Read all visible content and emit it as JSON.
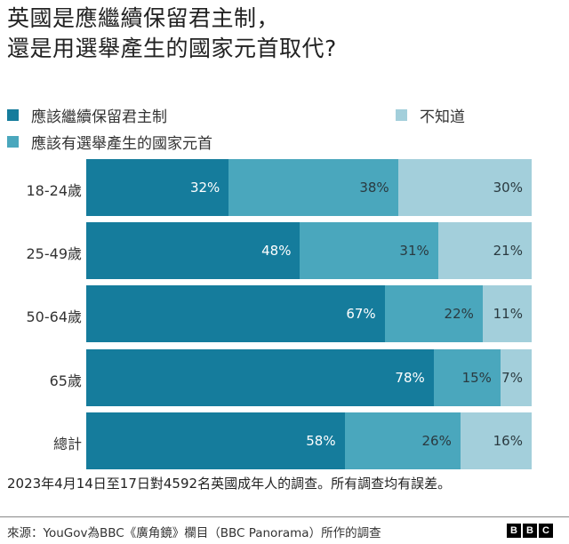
{
  "title": {
    "line1": "英國是應繼續保留君主制，",
    "line2": "還是用選舉產生的國家元首取代?"
  },
  "legend": [
    {
      "label": "應該繼續保留君主制",
      "color": "#157c9c"
    },
    {
      "label": "應該有選舉產生的國家元首",
      "color": "#4aa7bd"
    },
    {
      "label": "不知道",
      "color": "#a3cfdb"
    }
  ],
  "rows": [
    {
      "label": "18-24歲",
      "values": [
        "32%",
        "38%",
        "30%"
      ]
    },
    {
      "label": "25-49歲",
      "values": [
        "48%",
        "31%",
        "21%"
      ]
    },
    {
      "label": "50-64歲",
      "values": [
        "67%",
        "22%",
        "11%"
      ]
    },
    {
      "label": "65歲",
      "values": [
        "78%",
        "15%",
        "7%"
      ]
    },
    {
      "label": "總計",
      "values": [
        "58%",
        "26%",
        "16%"
      ]
    }
  ],
  "note": "2023年4月14日至17日對4592名英國成年人的調查。所有調查均有誤差。",
  "footer": {
    "source": "來源：YouGov為BBC《廣角鏡》欄目（BBC Panorama）所作的調查",
    "logo": [
      "B",
      "B",
      "C"
    ]
  },
  "chart_data": {
    "type": "bar",
    "orientation": "horizontal",
    "stacked": true,
    "title": "英國是應繼續保留君主制，還是用選舉產生的國家元首取代?",
    "categories": [
      "18-24歲",
      "25-49歲",
      "50-64歲",
      "65歲",
      "總計"
    ],
    "series": [
      {
        "name": "應該繼續保留君主制",
        "color": "#157c9c",
        "values": [
          32,
          48,
          67,
          78,
          58
        ]
      },
      {
        "name": "應該有選舉產生的國家元首",
        "color": "#4aa7bd",
        "values": [
          38,
          31,
          22,
          15,
          26
        ]
      },
      {
        "name": "不知道",
        "color": "#a3cfdb",
        "values": [
          30,
          21,
          11,
          7,
          16
        ]
      }
    ],
    "xlabel": "",
    "ylabel": "",
    "xlim": [
      0,
      100
    ],
    "grid": false,
    "legend_position": "top",
    "value_format": "percent",
    "note": "2023年4月14日至17日對4592名英國成年人的調查。所有調查均有誤差。",
    "source": "來源：YouGov為BBC《廣角鏡》欄目（BBC Panorama）所作的調查"
  }
}
